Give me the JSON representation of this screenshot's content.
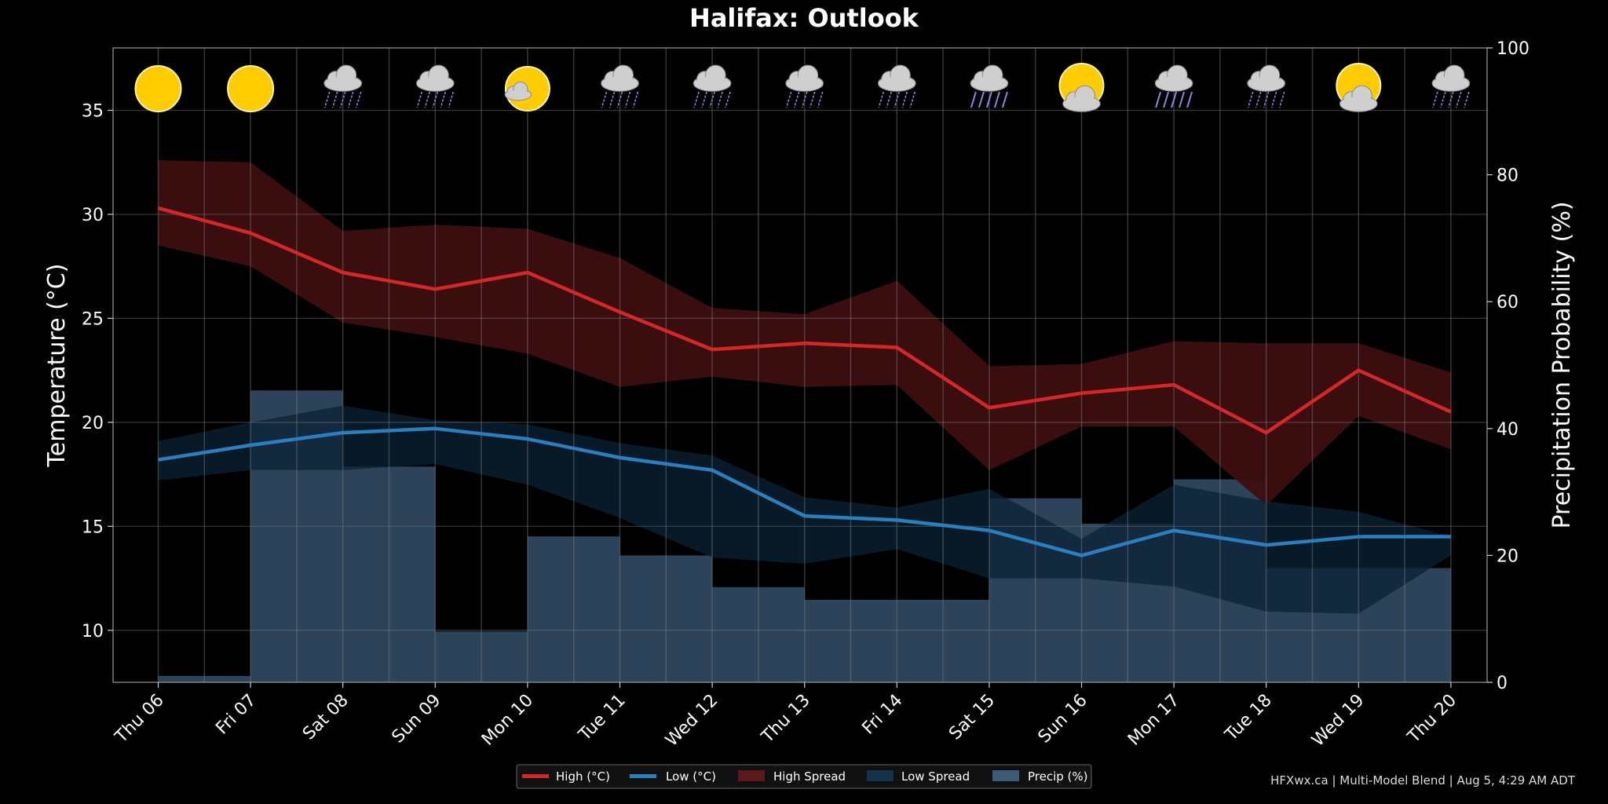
{
  "chart_data": {
    "type": "line",
    "title": "Halifax: Outlook",
    "ylabel": "Temperature (°C)",
    "ylabel_right": "Precipitation Probability (%)",
    "ylim": [
      7.5,
      38
    ],
    "y_ticks": [
      10,
      15,
      20,
      25,
      30,
      35
    ],
    "ylim_right": [
      0,
      100
    ],
    "y_ticks_right": [
      0,
      20,
      40,
      60,
      80,
      100
    ],
    "categories": [
      "Thu 06",
      "Fri 07",
      "Sat 08",
      "Sun 09",
      "Mon 10",
      "Tue 11",
      "Wed 12",
      "Thu 13",
      "Fri 14",
      "Sat 15",
      "Sun 16",
      "Mon 17",
      "Tue 18",
      "Wed 19",
      "Thu 20"
    ],
    "weather_icons": [
      "sunny-icon",
      "sunny-icon",
      "rain-cloud-icon",
      "rain-cloud-icon",
      "partly-cloudy-icon",
      "rain-cloud-icon",
      "rain-cloud-icon",
      "rain-cloud-icon",
      "rain-cloud-icon",
      "heavy-rain-cloud-icon",
      "partly-cloudy-icon",
      "heavy-rain-cloud-icon",
      "rain-cloud-icon",
      "partly-cloudy-icon",
      "rain-cloud-icon"
    ],
    "series": [
      {
        "name": "High (°C)",
        "color": "#d62728",
        "values": [
          30.3,
          29.1,
          27.2,
          26.4,
          27.2,
          25.3,
          23.5,
          23.8,
          23.6,
          20.7,
          21.4,
          21.8,
          19.5,
          22.5,
          20.5
        ]
      },
      {
        "name": "Low (°C)",
        "color": "#2a7fc0",
        "values": [
          18.2,
          18.9,
          19.5,
          19.7,
          19.2,
          18.3,
          17.7,
          15.5,
          15.3,
          14.8,
          13.6,
          14.8,
          14.1,
          14.5,
          14.5
        ]
      }
    ],
    "bands": [
      {
        "name": "High Spread",
        "color": "#3d0f10",
        "upper": [
          32.6,
          32.5,
          29.2,
          29.5,
          29.3,
          27.9,
          25.5,
          25.2,
          26.8,
          22.7,
          22.8,
          23.9,
          23.8,
          23.8,
          22.4
        ],
        "lower": [
          28.5,
          27.5,
          24.8,
          24.1,
          23.3,
          21.7,
          22.2,
          21.7,
          21.8,
          17.7,
          19.8,
          19.8,
          16.0,
          20.3,
          18.7
        ]
      },
      {
        "name": "Low Spread",
        "color": "#0b2236",
        "upper": [
          19.1,
          20.0,
          20.8,
          20.1,
          19.9,
          19.0,
          18.4,
          16.4,
          15.9,
          16.8,
          14.4,
          17.0,
          16.2,
          15.7,
          14.5
        ],
        "lower": [
          17.2,
          17.7,
          17.7,
          18.0,
          17.0,
          15.4,
          13.5,
          13.2,
          13.9,
          12.5,
          12.5,
          12.1,
          10.9,
          10.8,
          13.6
        ]
      }
    ],
    "precip": {
      "name": "Precip (%)",
      "color": "#3c5a78",
      "values": [
        0,
        1,
        46,
        34,
        8,
        23,
        20,
        15,
        13,
        13,
        29,
        25,
        32,
        18,
        18
      ]
    },
    "legend": [
      "High (°C)",
      "Low (°C)",
      "High Spread",
      "Low Spread",
      "Precip (%)"
    ],
    "legend_position": "bottom-center",
    "grid": true
  },
  "footer": {
    "credit": "HFXwx.ca | Multi-Model Blend | Aug 5, 4:29 AM ADT"
  }
}
